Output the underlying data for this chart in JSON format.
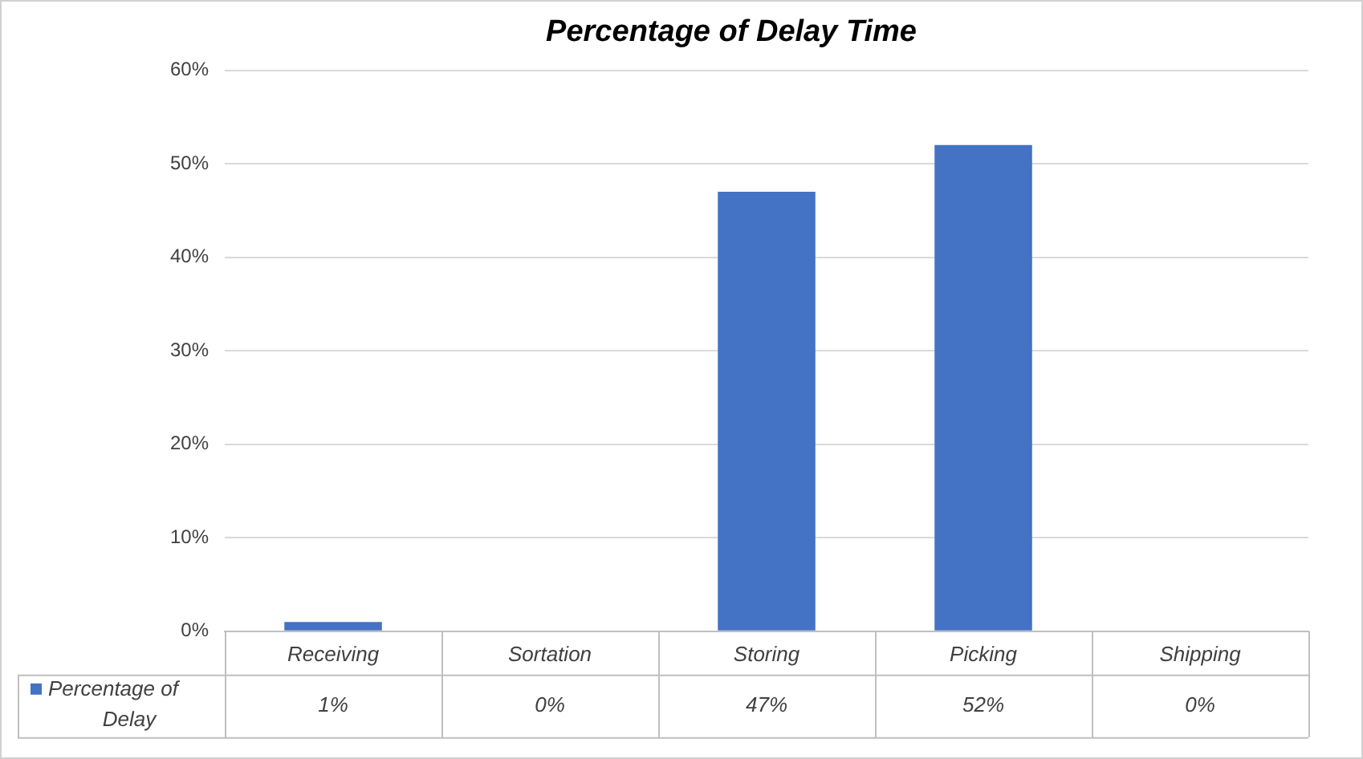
{
  "chart_data": {
    "type": "bar",
    "title": "Percentage of Delay Time",
    "categories": [
      "Receiving",
      "Sortation",
      "Storing",
      "Picking",
      "Shipping"
    ],
    "series": [
      {
        "name": "Percentage of Delay",
        "color": "#4472c4",
        "values": [
          1,
          0,
          47,
          52,
          0
        ],
        "value_labels": [
          "1%",
          "0%",
          "47%",
          "52%",
          "0%"
        ]
      }
    ],
    "ylim": [
      0,
      60
    ],
    "yticks": [
      {
        "value": 0,
        "label": "0%"
      },
      {
        "value": 10,
        "label": "10%"
      },
      {
        "value": 20,
        "label": "20%"
      },
      {
        "value": 30,
        "label": "30%"
      },
      {
        "value": 40,
        "label": "40%"
      },
      {
        "value": 50,
        "label": "50%"
      },
      {
        "value": 60,
        "label": "60%"
      }
    ],
    "grid": "y",
    "legend": "bottom left"
  }
}
